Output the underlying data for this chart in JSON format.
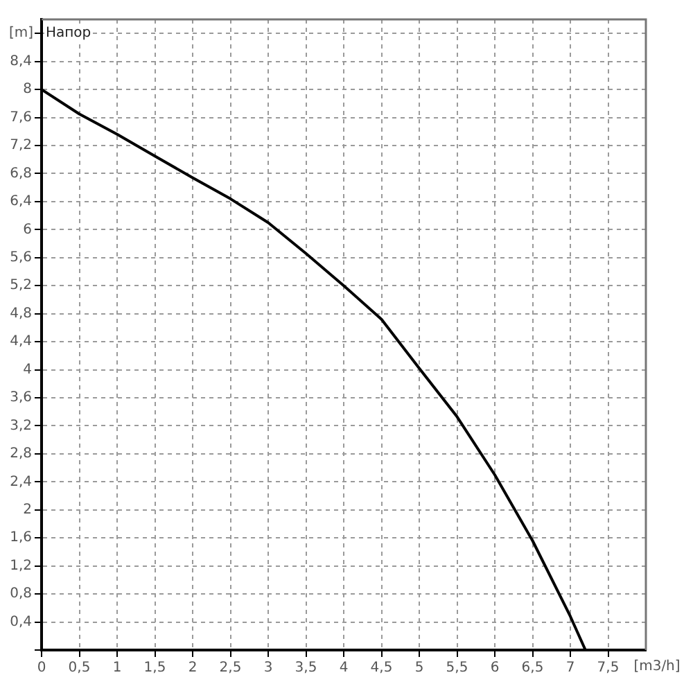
{
  "chart_data": {
    "type": "line",
    "title": "Напор",
    "xlabel": "[m3/h]",
    "ylabel": "[m]",
    "x": [
      0,
      0.5,
      1,
      1.5,
      2,
      2.5,
      3,
      3.5,
      4,
      4.5,
      5,
      5.5,
      6,
      6.5,
      7,
      7.2
    ],
    "series": [
      {
        "color": "#000000",
        "values": [
          8.0,
          7.65,
          7.36,
          7.05,
          6.74,
          6.44,
          6.1,
          5.66,
          5.2,
          4.72,
          4.02,
          3.33,
          2.5,
          1.56,
          0.48,
          0
        ]
      }
    ],
    "xlim": [
      0,
      8
    ],
    "xticks": [
      0,
      {
        "value": 0.5,
        "label": "0,5"
      },
      1,
      {
        "value": 1.5,
        "label": "1,5"
      },
      2,
      {
        "value": 2.5,
        "label": "2,5"
      },
      3,
      {
        "value": 3.5,
        "label": "3,5"
      },
      4,
      {
        "value": 4.5,
        "label": "4,5"
      },
      5,
      {
        "value": 5.5,
        "label": "5,5"
      },
      6,
      {
        "value": 6.5,
        "label": "6,5"
      },
      7,
      {
        "value": 7.5,
        "label": "7,5"
      }
    ],
    "ylim": [
      0,
      9
    ],
    "yticks": [
      {
        "value": 0,
        "label": null
      },
      {
        "value": 0.4,
        "label": "0,4"
      },
      {
        "value": 0.8,
        "label": "0,8"
      },
      {
        "value": 1.2,
        "label": "1,2"
      },
      {
        "value": 1.6,
        "label": "1,6"
      },
      2,
      {
        "value": 2.4,
        "label": "2,4"
      },
      {
        "value": 2.8,
        "label": "2,8"
      },
      {
        "value": 3.2,
        "label": "3,2"
      },
      {
        "value": 3.6,
        "label": "3,6"
      },
      4,
      {
        "value": 4.4,
        "label": "4,4"
      },
      {
        "value": 4.8,
        "label": "4,8"
      },
      {
        "value": 5.2,
        "label": "5,2"
      },
      {
        "value": 5.6,
        "label": "5,6"
      },
      6,
      {
        "value": 6.4,
        "label": "6,4"
      },
      {
        "value": 6.8,
        "label": "6,8"
      },
      {
        "value": 7.2,
        "label": "7,2"
      },
      {
        "value": 7.6,
        "label": "7,6"
      },
      8,
      {
        "value": 8.4,
        "label": "8,4"
      },
      {
        "value": 8.8,
        "label": null
      }
    ],
    "grid": true,
    "legend": false,
    "marker": "none",
    "line_style": "solid"
  }
}
